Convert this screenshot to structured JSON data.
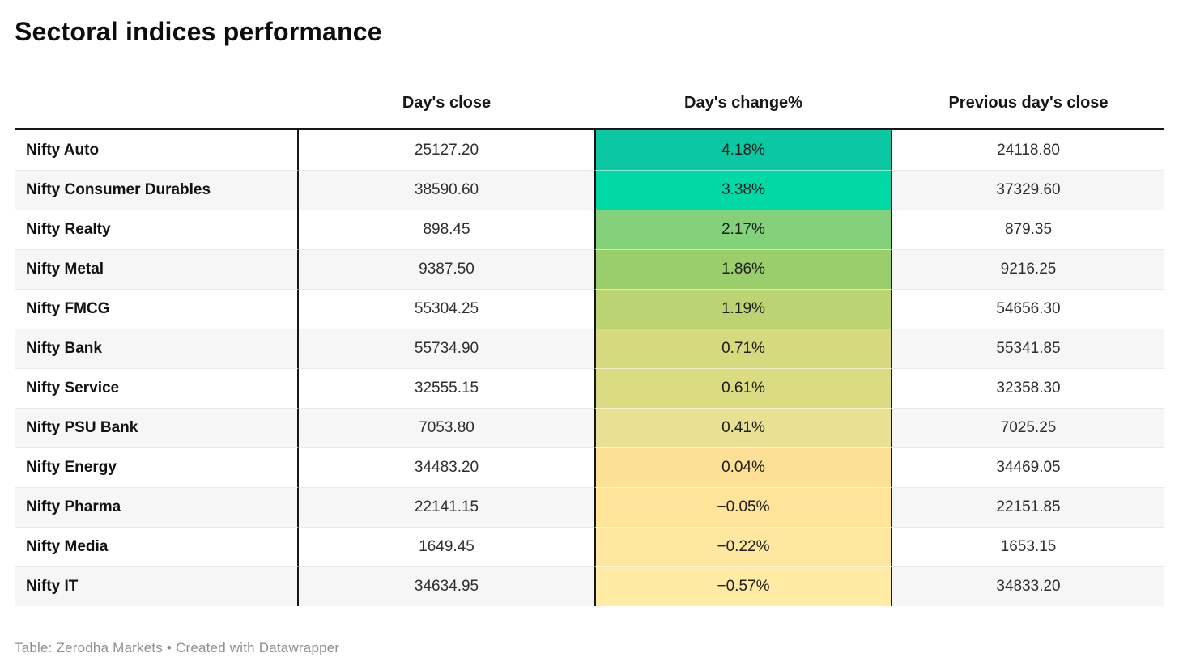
{
  "title": "Sectoral indices performance",
  "footer": {
    "text": "Table: Zerodha Markets • Created with Datawrapper"
  },
  "colors": {
    "header_rule": "#161616",
    "column_divider": "#161616",
    "row_stripe": "#f6f6f6",
    "row_separator": "#e9e9e9",
    "footer_text": "#8e8e8e"
  },
  "chart_data": {
    "type": "table",
    "title": "Sectoral indices performance",
    "columns": [
      "",
      "Day's close",
      "Day's change%",
      "Previous day's close"
    ],
    "color_scale_note": "Day's change% cells shaded on gradient: teal-green for largest gains to pale yellow for losses",
    "source": "Zerodha Markets",
    "tool": "Datawrapper",
    "rows": [
      {
        "sector": "Nifty Auto",
        "close": "25127.20",
        "change": "4.18%",
        "prev_close": "24118.80",
        "change_color": "#0bc8a2"
      },
      {
        "sector": "Nifty Consumer Durables",
        "close": "38590.60",
        "change": "3.38%",
        "prev_close": "37329.60",
        "change_color": "#00d9a5"
      },
      {
        "sector": "Nifty Realty",
        "close": "898.45",
        "change": "2.17%",
        "prev_close": "879.35",
        "change_color": "#83d17a"
      },
      {
        "sector": "Nifty Metal",
        "close": "9387.50",
        "change": "1.86%",
        "prev_close": "9216.25",
        "change_color": "#9ace6b"
      },
      {
        "sector": "Nifty FMCG",
        "close": "55304.25",
        "change": "1.19%",
        "prev_close": "54656.30",
        "change_color": "#bbd372"
      },
      {
        "sector": "Nifty Bank",
        "close": "55734.90",
        "change": "0.71%",
        "prev_close": "55341.85",
        "change_color": "#d5da7e"
      },
      {
        "sector": "Nifty Service",
        "close": "32555.15",
        "change": "0.61%",
        "prev_close": "32358.30",
        "change_color": "#dbdb82"
      },
      {
        "sector": "Nifty PSU Bank",
        "close": "7053.80",
        "change": "0.41%",
        "prev_close": "7025.25",
        "change_color": "#e7e191"
      },
      {
        "sector": "Nifty Energy",
        "close": "34483.20",
        "change": "0.04%",
        "prev_close": "34469.05",
        "change_color": "#fbe095"
      },
      {
        "sector": "Nifty Pharma",
        "close": "22141.15",
        "change": "−0.05%",
        "prev_close": "22151.85",
        "change_color": "#ffe49a"
      },
      {
        "sector": "Nifty Media",
        "close": "1649.45",
        "change": "−0.22%",
        "prev_close": "1653.15",
        "change_color": "#fee79e"
      },
      {
        "sector": "Nifty IT",
        "close": "34634.95",
        "change": "−0.57%",
        "prev_close": "34833.20",
        "change_color": "#ffeba3"
      }
    ]
  }
}
